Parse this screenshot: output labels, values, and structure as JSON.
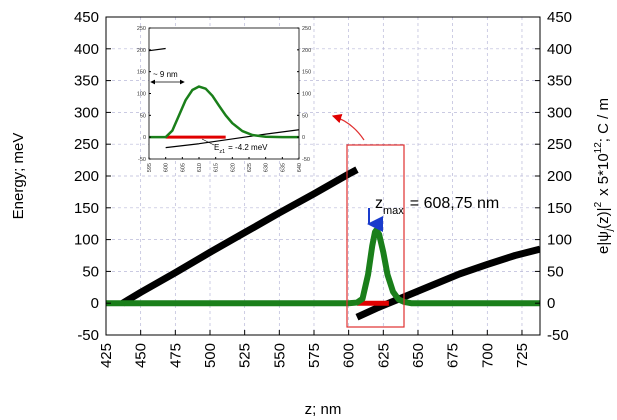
{
  "chart_data": [
    {
      "type": "line",
      "xlabel": "z; nm",
      "ylabel_left": "Energy; meV",
      "ylabel_right": "e|ψ",
      "ylabel_right_sub": "j",
      "ylabel_right_tail": "(z)|",
      "ylabel_right_sup": "2",
      "ylabel_right_scale": "x 5*10",
      "ylabel_right_scale_sup": "12",
      "ylabel_right_units": "; C / m",
      "xlim": [
        425,
        738
      ],
      "ylim": [
        -50,
        450
      ],
      "xticks": [
        425,
        450,
        475,
        500,
        525,
        550,
        575,
        600,
        625,
        650,
        675,
        700,
        725
      ],
      "yticks": [
        -50,
        0,
        50,
        100,
        150,
        200,
        250,
        300,
        350,
        400,
        450
      ],
      "grid": true,
      "series": [
        {
          "color": "#000000",
          "x": [
            437,
            450,
            475,
            500,
            525,
            550,
            575,
            600,
            606
          ],
          "y": [
            0,
            17,
            48,
            80,
            111,
            142,
            172,
            203,
            210
          ]
        },
        {
          "color": "#000000",
          "x": [
            606,
            620,
            640,
            660,
            680,
            700,
            720,
            738
          ],
          "y": [
            -22,
            -8,
            10,
            28,
            46,
            61,
            75,
            85
          ]
        },
        {
          "color": "#e00000",
          "x": [
            606,
            629
          ],
          "y": [
            0,
            0
          ]
        },
        {
          "color": "#1a7f1a",
          "x": [
            425,
            600,
            606,
            610,
            614,
            617,
            619,
            620,
            622,
            625,
            628,
            632,
            636,
            640,
            645,
            738
          ],
          "y": [
            0,
            0,
            1,
            7,
            45,
            90,
            112,
            115,
            108,
            80,
            45,
            18,
            6,
            2,
            0,
            0
          ]
        }
      ],
      "annotations": {
        "zmax_prefix": "z",
        "zmax_sub": "max",
        "zmax_value": "= 608,75 nm"
      }
    },
    {
      "type": "line",
      "inset": true,
      "xlim": [
        595,
        640
      ],
      "ylim": [
        -50,
        250
      ],
      "xticks": [
        595,
        600,
        605,
        610,
        615,
        620,
        625,
        630,
        635,
        640
      ],
      "yticks": [
        -50,
        0,
        50,
        100,
        150,
        200,
        250
      ],
      "series": [
        {
          "color": "#000000",
          "x": [
            595,
            600
          ],
          "y": [
            198,
            203
          ]
        },
        {
          "color": "#000000",
          "x": [
            600,
            610,
            620,
            630,
            640
          ],
          "y": [
            -24,
            -15,
            -4,
            7,
            17
          ]
        },
        {
          "color": "#e00000",
          "x": [
            600,
            618
          ],
          "y": [
            0,
            0
          ]
        },
        {
          "color": "#1a7f1a",
          "x": [
            595,
            600,
            602,
            604,
            606,
            608,
            610,
            612,
            614,
            616,
            618,
            620,
            623,
            626,
            630,
            635,
            640
          ],
          "y": [
            0,
            0,
            15,
            50,
            85,
            108,
            116,
            111,
            95,
            72,
            50,
            32,
            14,
            5,
            1,
            0,
            0
          ]
        }
      ],
      "annotations": {
        "width_label": "~ 9 nm",
        "energy_prefix": "E",
        "energy_sub": "z1",
        "energy_value": "= -4.2 meV"
      }
    }
  ]
}
